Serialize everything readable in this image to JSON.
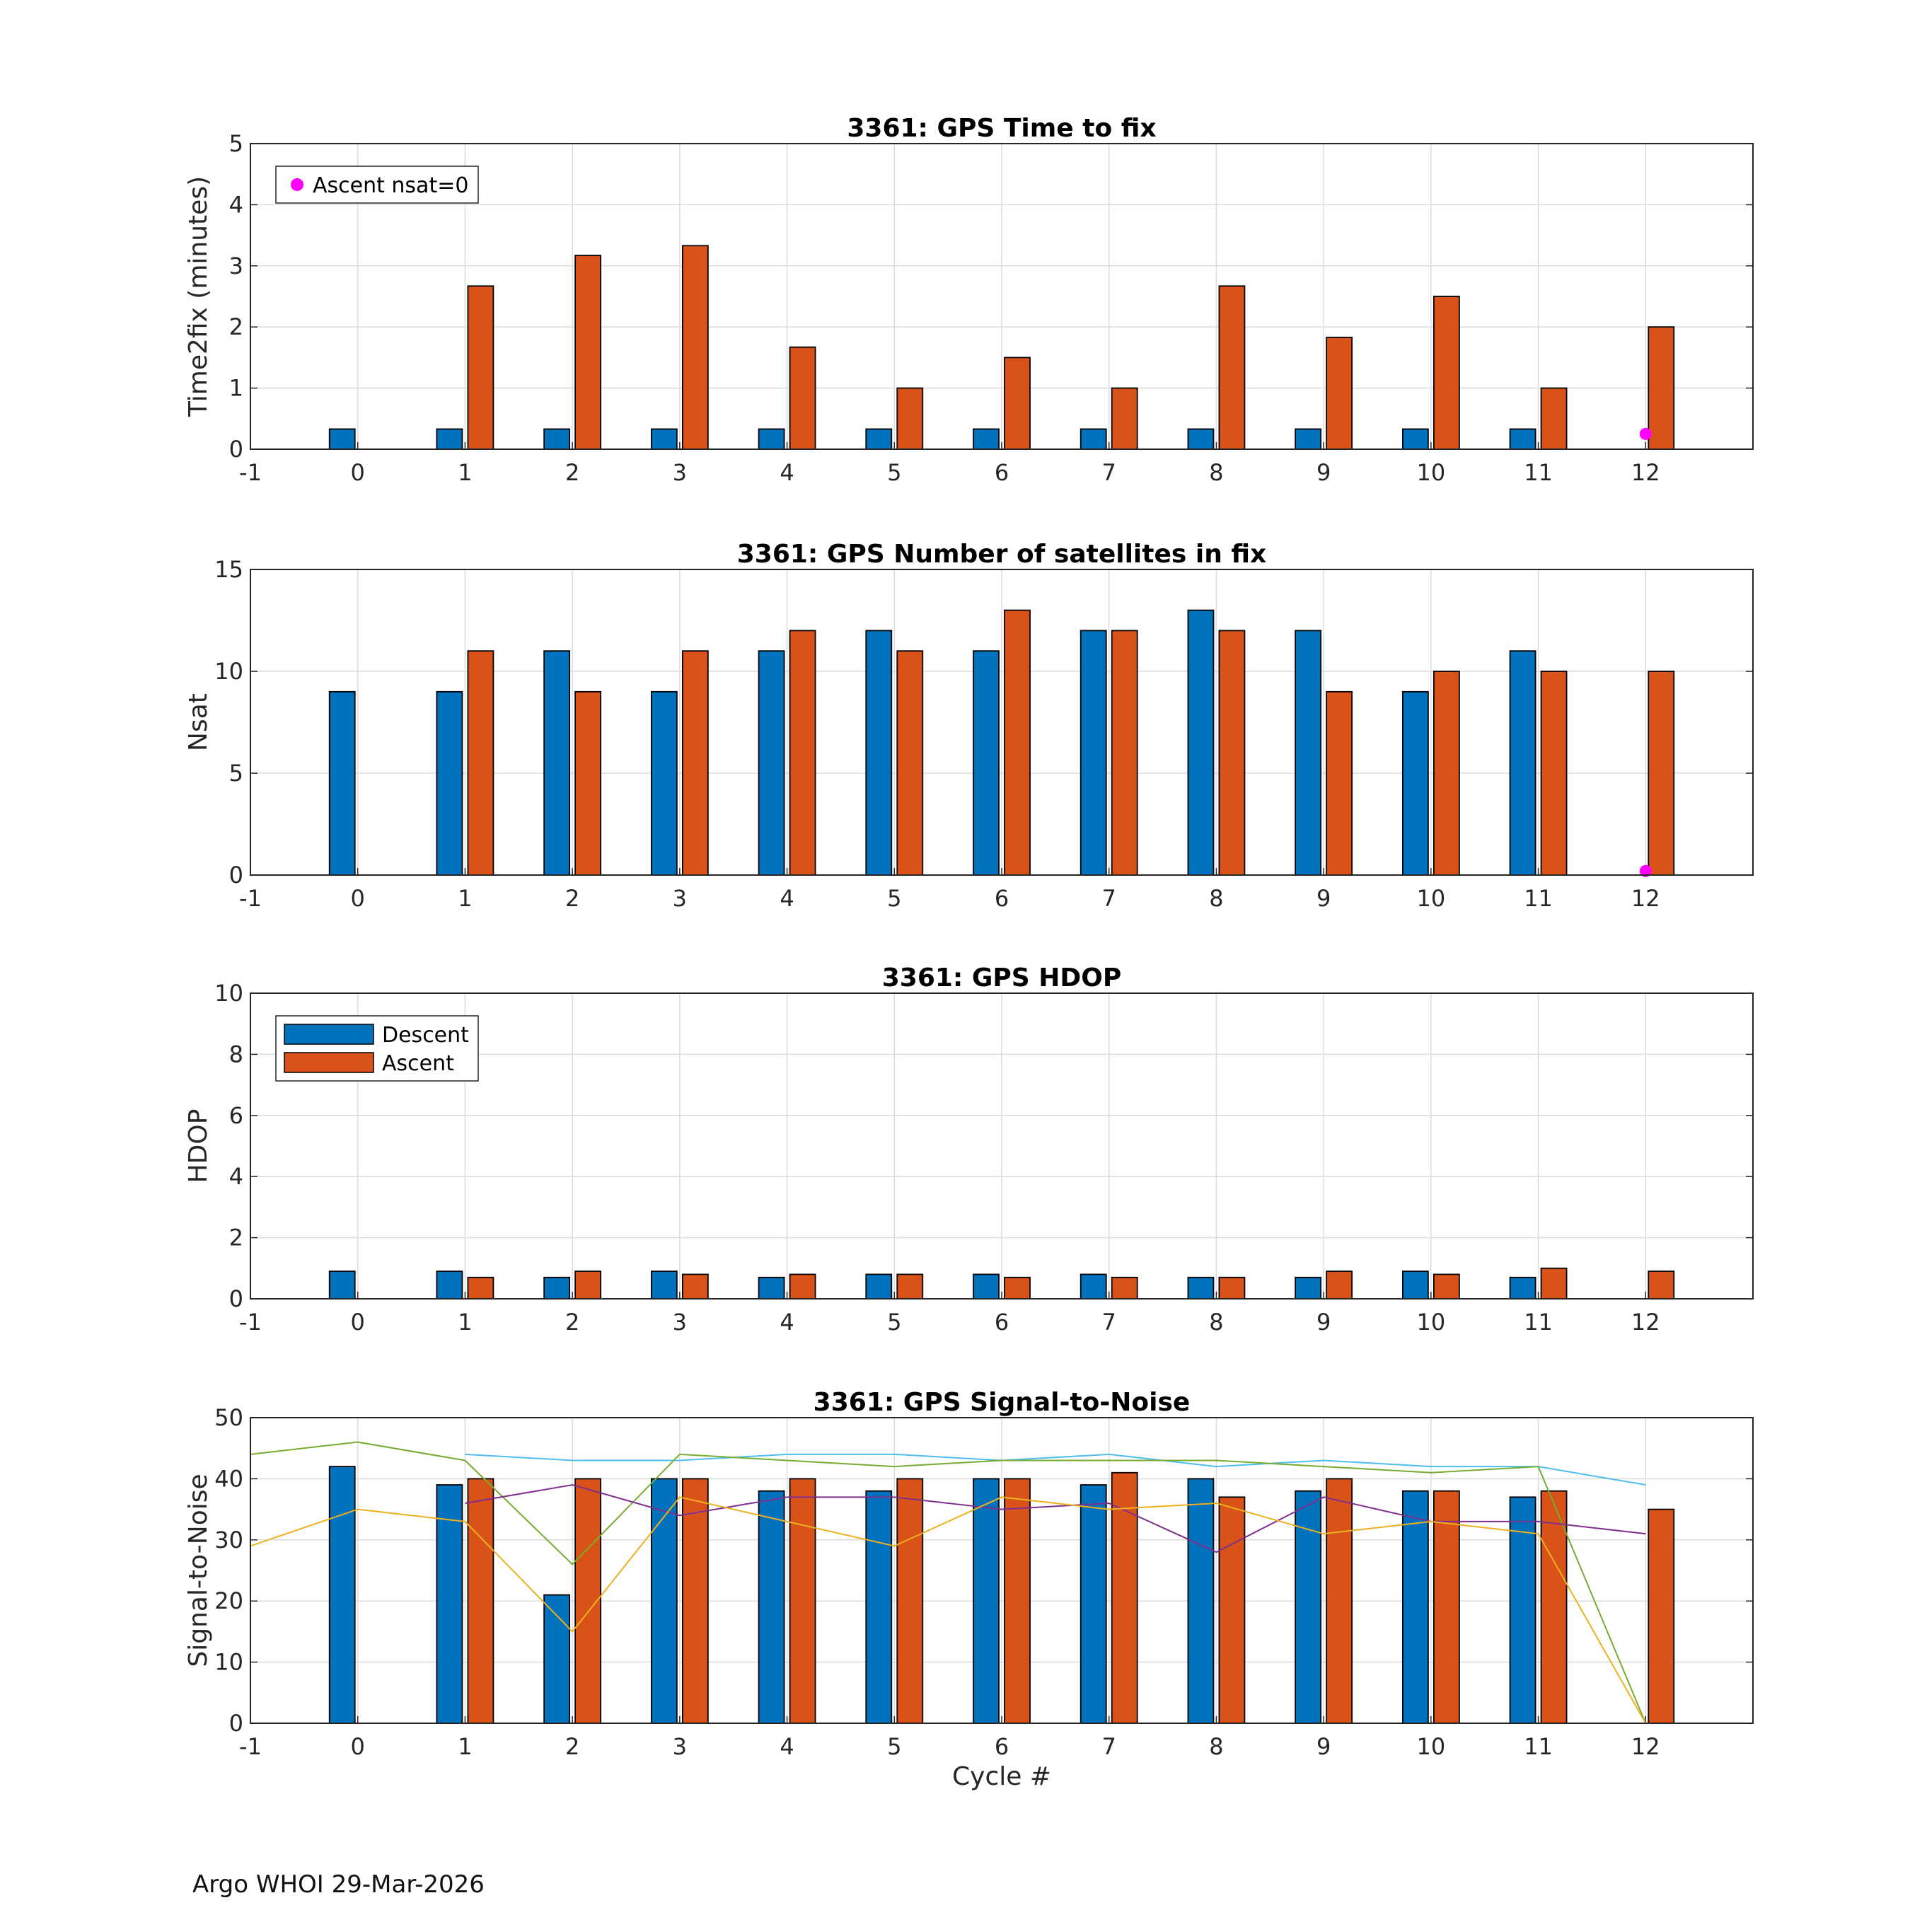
{
  "footer": "Argo WHOI 29-Mar-2026",
  "colors": {
    "descent": "#0072BD",
    "ascent": "#D95319",
    "marker": "#FF00FF",
    "line_cyan": "#4DBEEE",
    "line_green": "#77AC30",
    "line_purple": "#7E2F8E",
    "line_yellow": "#EDB120",
    "grid": "#dcdcdc"
  },
  "chart_data": [
    {
      "type": "bar",
      "title": "3361: GPS Time to fix",
      "xlabel": "",
      "ylabel": "Time2fix (minutes)",
      "xlim": [
        -1,
        13
      ],
      "ylim": [
        0,
        5
      ],
      "xticks": [
        "-1",
        "0",
        "1",
        "2",
        "3",
        "4",
        "5",
        "6",
        "7",
        "8",
        "9",
        "10",
        "11",
        "12"
      ],
      "yticks": [
        "0",
        "1",
        "2",
        "3",
        "4",
        "5"
      ],
      "categories": [
        0,
        1,
        2,
        3,
        4,
        5,
        6,
        7,
        8,
        9,
        10,
        11,
        12
      ],
      "series": [
        {
          "name": "Descent",
          "values": [
            0.33,
            0.33,
            0.33,
            0.33,
            0.33,
            0.33,
            0.33,
            0.33,
            0.33,
            0.33,
            0.33,
            0.33,
            null
          ]
        },
        {
          "name": "Ascent",
          "values": [
            null,
            2.67,
            3.17,
            3.33,
            1.67,
            1.0,
            1.5,
            1.0,
            2.67,
            1.83,
            2.5,
            1.0,
            2.0
          ]
        }
      ],
      "markers": [
        {
          "x": 12,
          "y": 0.25
        }
      ],
      "legend": {
        "position": "top-left",
        "entries": [
          {
            "label": "Ascent nsat=0",
            "kind": "marker"
          }
        ]
      }
    },
    {
      "type": "bar",
      "title": "3361: GPS Number of satellites in fix",
      "xlabel": "",
      "ylabel": "Nsat",
      "xlim": [
        -1,
        13
      ],
      "ylim": [
        0,
        15
      ],
      "xticks": [
        "-1",
        "0",
        "1",
        "2",
        "3",
        "4",
        "5",
        "6",
        "7",
        "8",
        "9",
        "10",
        "11",
        "12"
      ],
      "yticks": [
        "0",
        "5",
        "10",
        "15"
      ],
      "categories": [
        0,
        1,
        2,
        3,
        4,
        5,
        6,
        7,
        8,
        9,
        10,
        11,
        12
      ],
      "series": [
        {
          "name": "Descent",
          "values": [
            9,
            9,
            11,
            9,
            11,
            12,
            11,
            12,
            13,
            12,
            9,
            11,
            null
          ]
        },
        {
          "name": "Ascent",
          "values": [
            null,
            11,
            9,
            11,
            12,
            11,
            13,
            12,
            12,
            9,
            10,
            10,
            10
          ]
        }
      ],
      "markers": [
        {
          "x": 12,
          "y": 0.2
        }
      ]
    },
    {
      "type": "bar",
      "title": "3361: GPS HDOP",
      "xlabel": "",
      "ylabel": "HDOP",
      "xlim": [
        -1,
        13
      ],
      "ylim": [
        0,
        10
      ],
      "xticks": [
        "-1",
        "0",
        "1",
        "2",
        "3",
        "4",
        "5",
        "6",
        "7",
        "8",
        "9",
        "10",
        "11",
        "12"
      ],
      "yticks": [
        "0",
        "2",
        "4",
        "6",
        "8",
        "10"
      ],
      "categories": [
        0,
        1,
        2,
        3,
        4,
        5,
        6,
        7,
        8,
        9,
        10,
        11,
        12
      ],
      "series": [
        {
          "name": "Descent",
          "values": [
            0.9,
            0.9,
            0.7,
            0.9,
            0.7,
            0.8,
            0.8,
            0.8,
            0.7,
            0.7,
            0.9,
            0.7,
            null
          ]
        },
        {
          "name": "Ascent",
          "values": [
            null,
            0.7,
            0.9,
            0.8,
            0.8,
            0.8,
            0.7,
            0.7,
            0.7,
            0.9,
            0.8,
            1.0,
            0.9
          ]
        }
      ],
      "legend": {
        "position": "top-left",
        "entries": [
          {
            "label": "Descent",
            "kind": "bar",
            "series": 0
          },
          {
            "label": "Ascent",
            "kind": "bar",
            "series": 1
          }
        ]
      }
    },
    {
      "type": "bar",
      "title": "3361: GPS Signal-to-Noise",
      "xlabel": "Cycle #",
      "ylabel": "Signal-to-Noise",
      "xlim": [
        -1,
        13
      ],
      "ylim": [
        0,
        50
      ],
      "xticks": [
        "-1",
        "0",
        "1",
        "2",
        "3",
        "4",
        "5",
        "6",
        "7",
        "8",
        "9",
        "10",
        "11",
        "12"
      ],
      "yticks": [
        "0",
        "10",
        "20",
        "30",
        "40",
        "50"
      ],
      "categories": [
        0,
        1,
        2,
        3,
        4,
        5,
        6,
        7,
        8,
        9,
        10,
        11,
        12
      ],
      "series": [
        {
          "name": "Descent",
          "values": [
            42,
            39,
            21,
            40,
            38,
            38,
            40,
            39,
            40,
            38,
            38,
            37,
            null
          ]
        },
        {
          "name": "Ascent",
          "values": [
            null,
            40,
            40,
            40,
            40,
            40,
            40,
            41,
            37,
            40,
            38,
            38,
            35
          ]
        }
      ],
      "lines": [
        {
          "color_key": "line_cyan",
          "x": [
            1,
            2,
            3,
            4,
            5,
            6,
            7,
            8,
            9,
            10,
            11,
            12
          ],
          "y": [
            44,
            43,
            43,
            44,
            44,
            43,
            44,
            42,
            43,
            42,
            42,
            39
          ]
        },
        {
          "color_key": "line_green",
          "x": [
            -1,
            0,
            1,
            2,
            3,
            4,
            5,
            6,
            7,
            8,
            9,
            10,
            11,
            12
          ],
          "y": [
            44,
            46,
            43,
            26,
            44,
            43,
            42,
            43,
            43,
            43,
            42,
            41,
            42,
            0
          ]
        },
        {
          "color_key": "line_purple",
          "x": [
            1,
            2,
            3,
            4,
            5,
            6,
            7,
            8,
            9,
            10,
            11,
            12
          ],
          "y": [
            36,
            39,
            34,
            37,
            37,
            35,
            36,
            28,
            37,
            33,
            33,
            31
          ]
        },
        {
          "color_key": "line_yellow",
          "x": [
            -1,
            0,
            1,
            2,
            3,
            4,
            5,
            6,
            7,
            8,
            9,
            10,
            11,
            12
          ],
          "y": [
            29,
            35,
            33,
            15,
            37,
            33,
            29,
            37,
            35,
            36,
            31,
            33,
            31,
            0
          ]
        }
      ]
    }
  ]
}
